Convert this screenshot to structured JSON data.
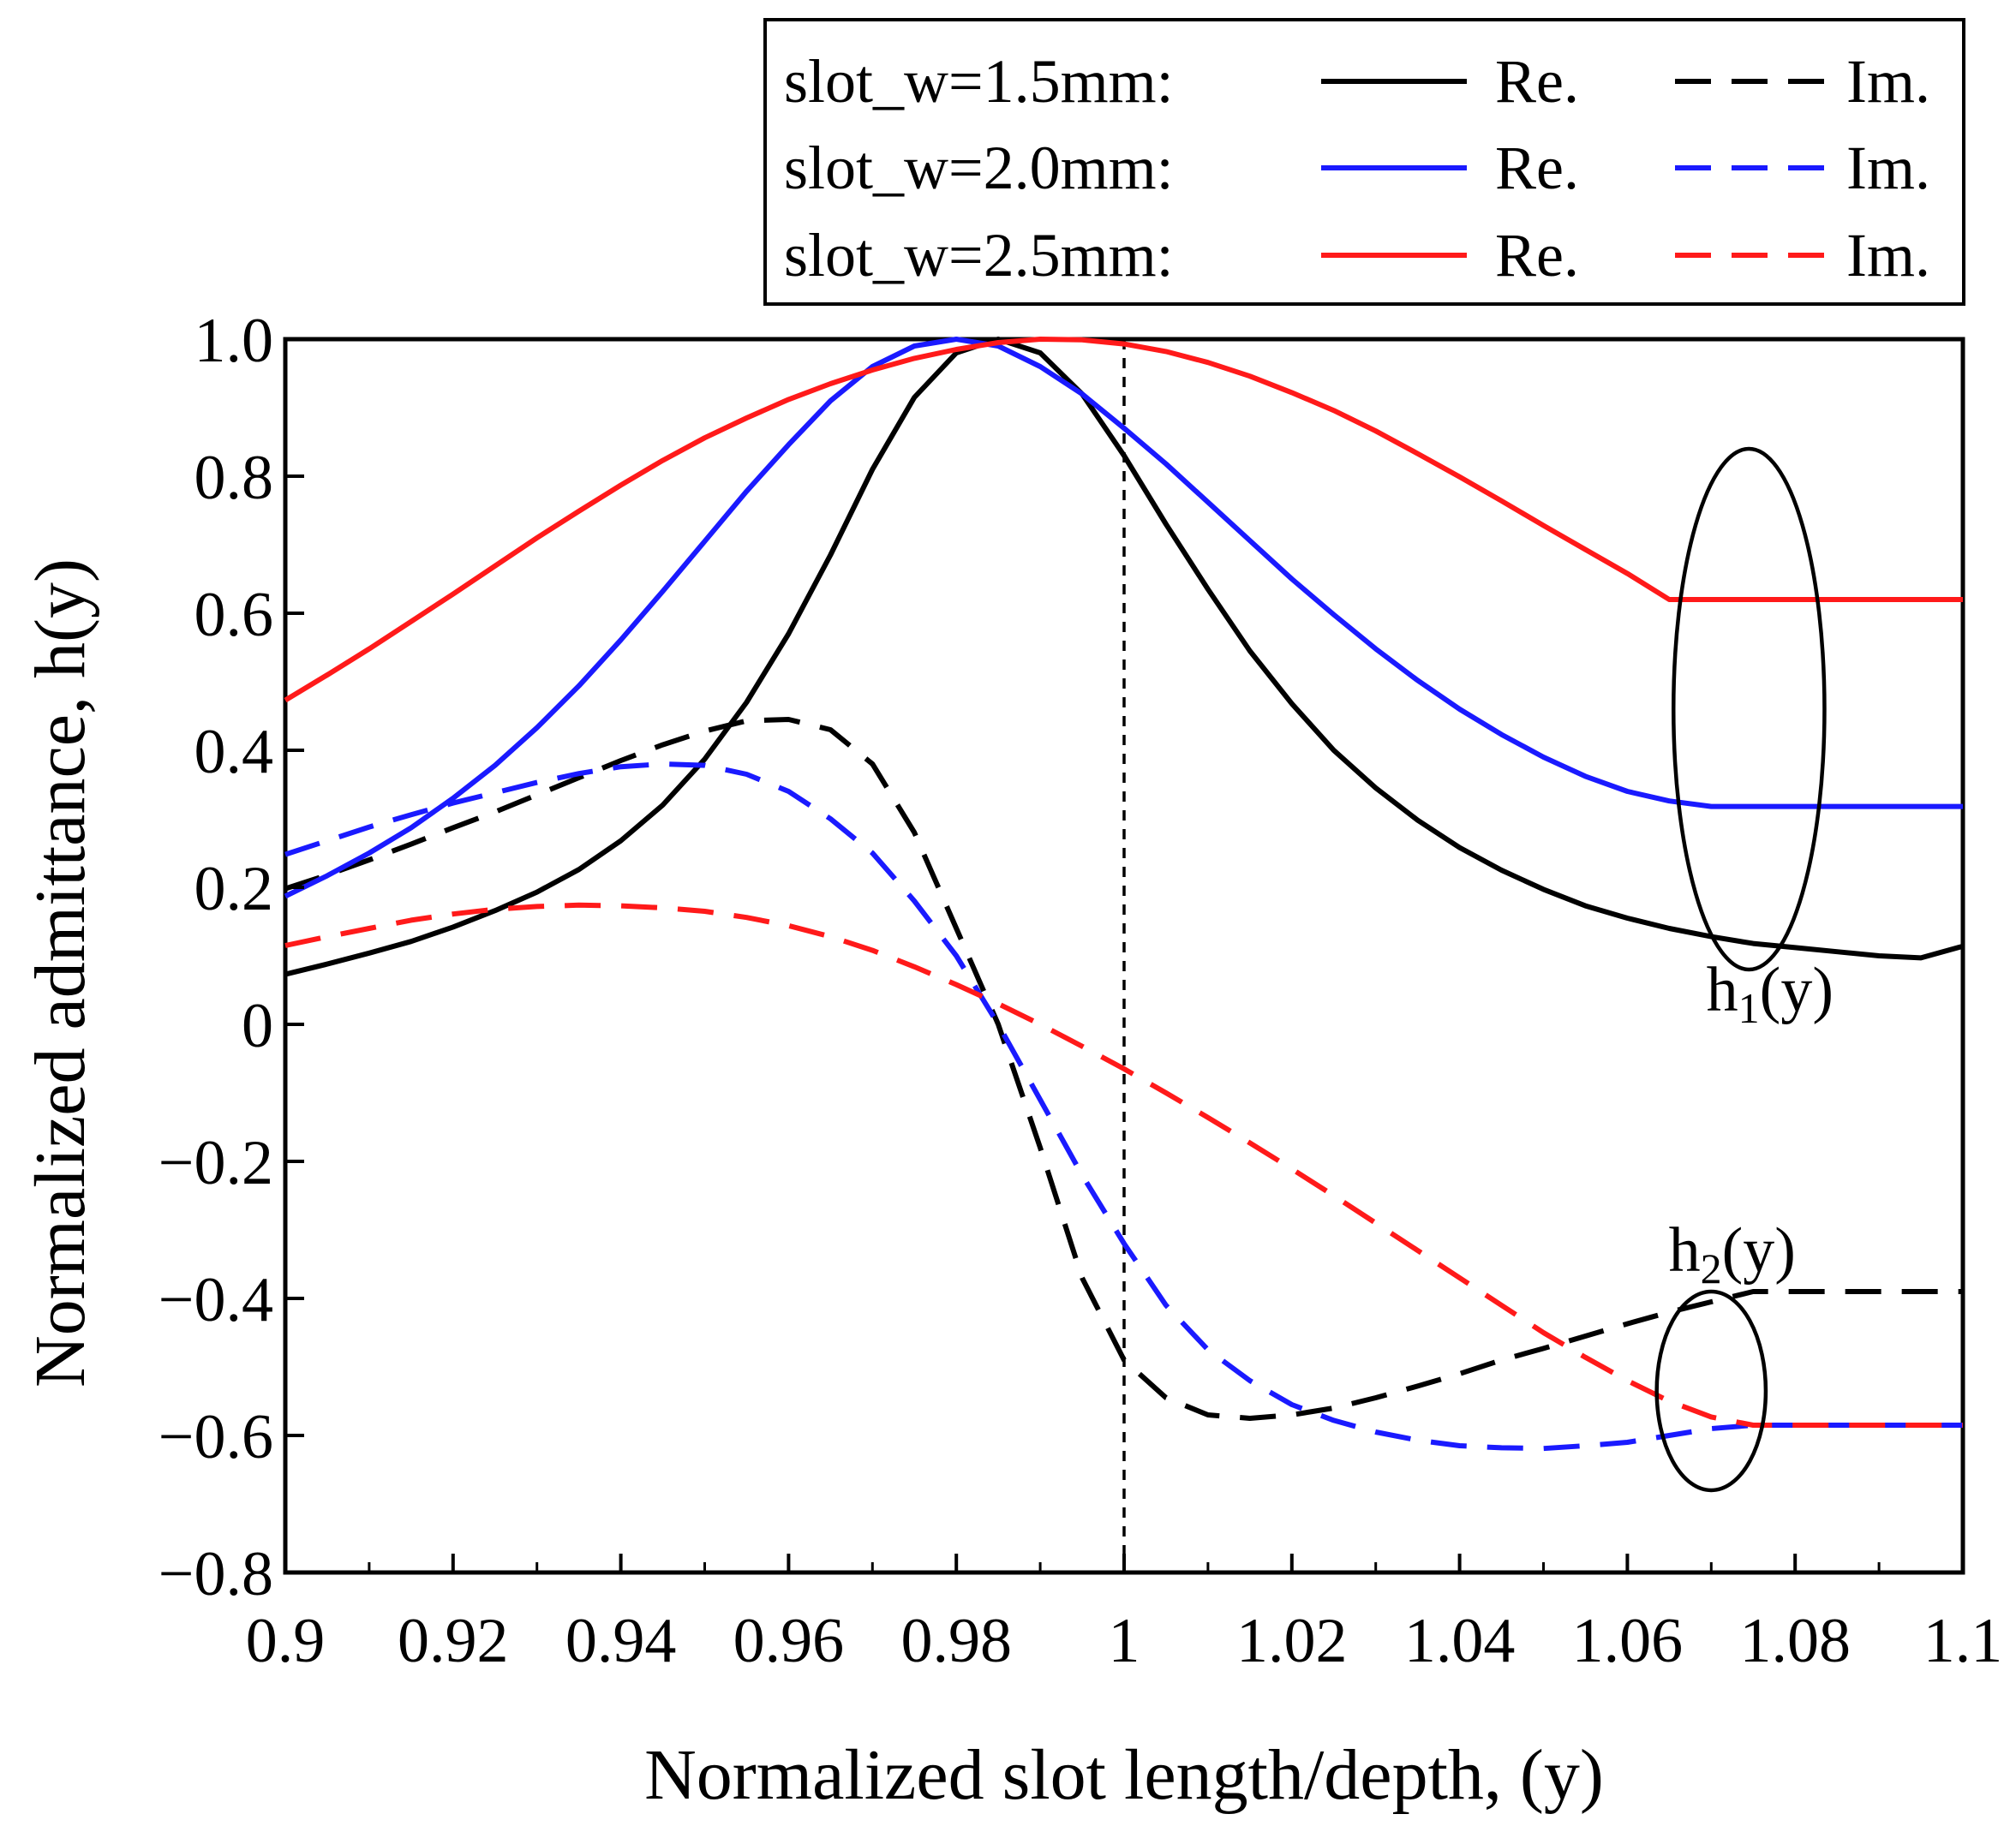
{
  "chart_data": {
    "type": "line",
    "title": "",
    "xlabel": "Normalized slot length/depth, (y)",
    "ylabel": "Normalized admittance, h(y)",
    "xlim": [
      0.9,
      1.1
    ],
    "ylim": [
      -0.8,
      1.0
    ],
    "grid": false,
    "legend_position": "top-right",
    "xticks": [
      0.9,
      0.92,
      0.94,
      0.96,
      0.98,
      1.0,
      1.02,
      1.04,
      1.06,
      1.08,
      1.1
    ],
    "xtick_labels": [
      "0.9",
      "0.92",
      "0.94",
      "0.96",
      "0.98",
      "1",
      "1.02",
      "1.04",
      "1.06",
      "1.08",
      "1.1"
    ],
    "yticks": [
      -0.8,
      -0.6,
      -0.4,
      -0.2,
      0.0,
      0.2,
      0.4,
      0.6,
      0.8,
      1.0
    ],
    "ytick_labels": [
      "−0.8",
      "−0.6",
      "−0.4",
      "−0.2",
      "0",
      "0.2",
      "0.4",
      "0.6",
      "0.8",
      "1.0"
    ],
    "reference_line_x": 1.0,
    "legend": {
      "rows": [
        {
          "label": "slot_w=1.5mm:",
          "color": "#000000",
          "re_label": "Re.",
          "im_label": "Im."
        },
        {
          "label": "slot_w=2.0mm:",
          "color": "#1a1aff",
          "re_label": "Re.",
          "im_label": "Im."
        },
        {
          "label": "slot_w=2.5mm:",
          "color": "#ff1a1a",
          "re_label": "Re.",
          "im_label": "Im."
        }
      ]
    },
    "annotations": [
      {
        "main": "h",
        "sub": "1",
        "suffix": "(y)",
        "x": 1.077,
        "y": 0.02,
        "ellipse": {
          "cx": 1.0745,
          "cy": 0.46,
          "rx": 0.009,
          "ry": 0.38
        }
      },
      {
        "main": "h",
        "sub": "2",
        "suffix": "(y)",
        "x": 1.0725,
        "y": -0.36,
        "ellipse": {
          "cx": 1.07,
          "cy": -0.535,
          "rx": 0.0065,
          "ry": 0.145
        }
      }
    ],
    "x": [
      0.9,
      0.905,
      0.91,
      0.915,
      0.92,
      0.925,
      0.93,
      0.935,
      0.94,
      0.945,
      0.95,
      0.955,
      0.96,
      0.965,
      0.97,
      0.975,
      0.98,
      0.985,
      0.99,
      0.995,
      1.0,
      1.005,
      1.01,
      1.015,
      1.02,
      1.025,
      1.03,
      1.035,
      1.04,
      1.045,
      1.05,
      1.055,
      1.06,
      1.065,
      1.07,
      1.075,
      1.08,
      1.085,
      1.09,
      1.095,
      1.1
    ],
    "series": [
      {
        "name": "slot_w=1.5mm Re.",
        "color": "#000000",
        "dash": "solid",
        "values": [
          0.073,
          0.088,
          0.104,
          0.121,
          0.142,
          0.166,
          0.193,
          0.226,
          0.268,
          0.32,
          0.387,
          0.47,
          0.57,
          0.685,
          0.81,
          0.915,
          0.98,
          1.0,
          0.98,
          0.92,
          0.83,
          0.73,
          0.635,
          0.545,
          0.468,
          0.4,
          0.345,
          0.298,
          0.258,
          0.225,
          0.197,
          0.173,
          0.155,
          0.14,
          0.128,
          0.118,
          0.112,
          0.106,
          0.1,
          0.097,
          0.114
        ]
      },
      {
        "name": "slot_w=1.5mm Im.",
        "color": "#000000",
        "dash": "dashed",
        "values": [
          0.198,
          0.218,
          0.24,
          0.263,
          0.287,
          0.31,
          0.335,
          0.36,
          0.385,
          0.408,
          0.428,
          0.443,
          0.445,
          0.43,
          0.38,
          0.28,
          0.14,
          0.0,
          -0.18,
          -0.37,
          -0.49,
          -0.545,
          -0.57,
          -0.575,
          -0.57,
          -0.56,
          -0.545,
          -0.528,
          -0.51,
          -0.49,
          -0.473,
          -0.455,
          -0.437,
          -0.42,
          -0.405,
          -0.39,
          -0.39,
          -0.39,
          -0.39,
          -0.39,
          -0.39
        ]
      },
      {
        "name": "slot_w=2.0mm Re.",
        "color": "#1a1aff",
        "dash": "solid",
        "values": [
          0.187,
          0.217,
          0.25,
          0.287,
          0.33,
          0.378,
          0.433,
          0.494,
          0.561,
          0.632,
          0.705,
          0.778,
          0.846,
          0.91,
          0.96,
          0.99,
          1.0,
          0.99,
          0.96,
          0.92,
          0.87,
          0.818,
          0.762,
          0.706,
          0.65,
          0.598,
          0.548,
          0.502,
          0.46,
          0.423,
          0.39,
          0.362,
          0.34,
          0.326,
          0.318,
          0.318,
          0.318,
          0.318,
          0.318,
          0.318,
          0.318
        ]
      },
      {
        "name": "slot_w=2.0mm Im.",
        "color": "#1a1aff",
        "dash": "dashed",
        "values": [
          0.248,
          0.268,
          0.288,
          0.306,
          0.323,
          0.338,
          0.353,
          0.366,
          0.376,
          0.38,
          0.378,
          0.365,
          0.34,
          0.3,
          0.25,
          0.18,
          0.1,
          0.0,
          -0.11,
          -0.22,
          -0.32,
          -0.41,
          -0.475,
          -0.52,
          -0.555,
          -0.578,
          -0.595,
          -0.607,
          -0.615,
          -0.618,
          -0.619,
          -0.615,
          -0.61,
          -0.6,
          -0.59,
          -0.585,
          -0.585,
          -0.585,
          -0.585,
          -0.585,
          -0.585
        ]
      },
      {
        "name": "slot_w=2.5mm Re.",
        "color": "#ff1a1a",
        "dash": "solid",
        "values": [
          0.473,
          0.51,
          0.548,
          0.588,
          0.628,
          0.669,
          0.71,
          0.749,
          0.787,
          0.823,
          0.856,
          0.885,
          0.912,
          0.935,
          0.955,
          0.972,
          0.985,
          0.995,
          1.0,
          0.999,
          0.993,
          0.982,
          0.966,
          0.946,
          0.922,
          0.896,
          0.866,
          0.833,
          0.799,
          0.764,
          0.728,
          0.693,
          0.658,
          0.62,
          0.62,
          0.62,
          0.62,
          0.62,
          0.62,
          0.62,
          0.62
        ]
      },
      {
        "name": "slot_w=2.5mm Im.",
        "color": "#ff1a1a",
        "dash": "dashed",
        "values": [
          0.115,
          0.128,
          0.14,
          0.152,
          0.161,
          0.168,
          0.172,
          0.174,
          0.173,
          0.17,
          0.165,
          0.156,
          0.144,
          0.128,
          0.108,
          0.084,
          0.058,
          0.03,
          0.0,
          -0.032,
          -0.065,
          -0.1,
          -0.136,
          -0.173,
          -0.211,
          -0.25,
          -0.29,
          -0.33,
          -0.37,
          -0.41,
          -0.45,
          -0.486,
          -0.52,
          -0.55,
          -0.573,
          -0.585,
          -0.585,
          -0.585,
          -0.585,
          -0.585,
          -0.585
        ]
      }
    ]
  }
}
